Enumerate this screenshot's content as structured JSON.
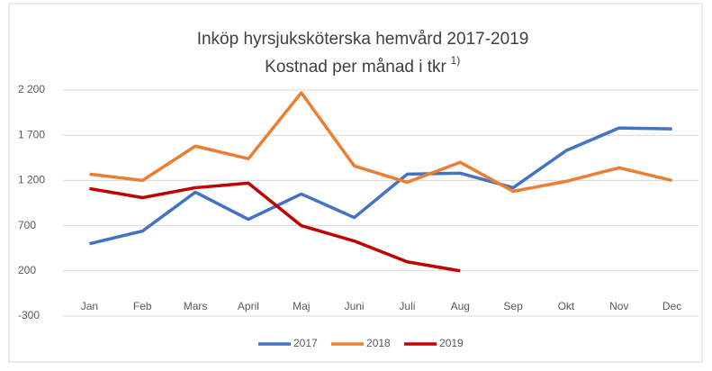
{
  "chart_data": {
    "type": "line",
    "title": "Inköp hyrsjuksköterska hemvård 2017-2019",
    "subtitle": "Kostnad per månad i tkr",
    "subtitle_note": "1)",
    "categories": [
      "Jan",
      "Feb",
      "Mars",
      "April",
      "Maj",
      "Juni",
      "Juli",
      "Aug",
      "Sep",
      "Okt",
      "Nov",
      "Dec"
    ],
    "series": [
      {
        "name": "2017",
        "color": "#4472c4",
        "values": [
          500,
          640,
          1070,
          770,
          1050,
          790,
          1270,
          1280,
          1120,
          1530,
          1780,
          1770
        ]
      },
      {
        "name": "2018",
        "color": "#ed7d31",
        "values": [
          1270,
          1200,
          1580,
          1440,
          2170,
          1360,
          1180,
          1400,
          1080,
          1190,
          1340,
          1200
        ]
      },
      {
        "name": "2019",
        "color": "#c00000",
        "values": [
          1110,
          1010,
          1120,
          1170,
          700,
          530,
          300,
          200,
          null,
          null,
          null,
          null
        ]
      }
    ],
    "ylim": [
      -300,
      2200
    ],
    "yticks": [
      -300,
      200,
      700,
      {
        "value": 1200,
        "label": "1 200"
      },
      {
        "value": 1700,
        "label": "1 700"
      },
      {
        "value": 2200,
        "label": "2 200"
      }
    ],
    "grid": true,
    "legend": "bottom"
  }
}
